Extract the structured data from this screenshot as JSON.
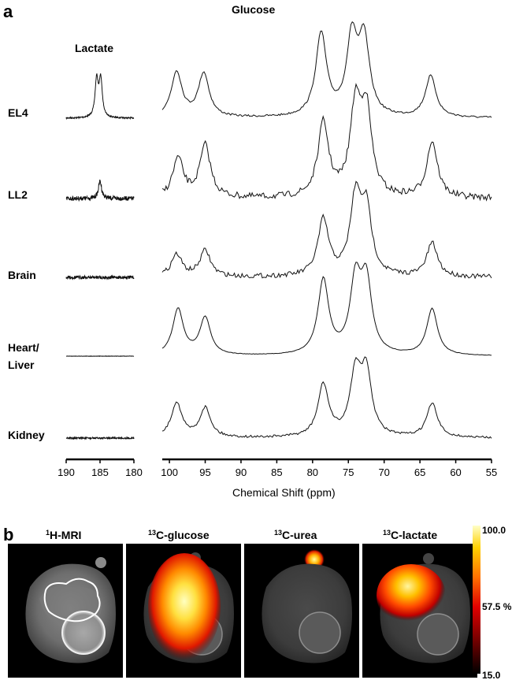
{
  "panel_a": {
    "letter": "a",
    "lactate_title": "Lactate",
    "glucose_title": "Glucose",
    "rows": [
      {
        "label_lines": [
          "EL4"
        ]
      },
      {
        "label_lines": [
          "LL2"
        ]
      },
      {
        "label_lines": [
          "Brain"
        ]
      },
      {
        "label_lines": [
          "Heart/",
          "Liver"
        ]
      },
      {
        "label_lines": [
          "Kidney"
        ]
      }
    ],
    "axis_title": "Chemical Shift (ppm)",
    "left_axis_ticks": [
      "190",
      "185",
      "180"
    ],
    "right_axis_ticks": [
      "100",
      "95",
      "90",
      "85",
      "80",
      "75",
      "70",
      "65",
      "60",
      "55"
    ]
  },
  "panel_b": {
    "letter": "b",
    "titles": [
      {
        "sup": "1",
        "text": "H-MRI"
      },
      {
        "sup": "13",
        "text": "C-glucose"
      },
      {
        "sup": "13",
        "text": "C-urea"
      },
      {
        "sup": "13",
        "text": "C-lactate"
      }
    ],
    "colorbar": {
      "max": "100.0",
      "mid": "57.5 %",
      "min": "15.0"
    }
  },
  "chart_data": [
    {
      "type": "line",
      "title": "",
      "xlabel": "Chemical Shift (ppm)",
      "ylabel": "",
      "x_axis_reversed": true,
      "xlim_segments": [
        [
          190,
          180
        ],
        [
          101,
          55
        ]
      ],
      "grid": false,
      "series": [
        {
          "name": "EL4",
          "peaks": [
            {
              "ppm": 185.5,
              "height": 0.45
            },
            {
              "ppm": 184.9,
              "height": 0.45
            },
            {
              "ppm": 99.0,
              "height": 0.55
            },
            {
              "ppm": 95.2,
              "height": 0.53
            },
            {
              "ppm": 78.8,
              "height": 1.0
            },
            {
              "ppm": 74.5,
              "height": 0.92
            },
            {
              "ppm": 72.8,
              "height": 0.9
            },
            {
              "ppm": 63.5,
              "height": 0.5
            }
          ]
        },
        {
          "name": "LL2",
          "peaks": [
            {
              "ppm": 185.0,
              "height": 0.2
            },
            {
              "ppm": 98.8,
              "height": 0.45
            },
            {
              "ppm": 95.0,
              "height": 0.6
            },
            {
              "ppm": 78.5,
              "height": 0.85
            },
            {
              "ppm": 74.0,
              "height": 1.0
            },
            {
              "ppm": 72.5,
              "height": 0.95
            },
            {
              "ppm": 63.3,
              "height": 0.65
            }
          ]
        },
        {
          "name": "Brain",
          "peaks": [
            {
              "ppm": 99.0,
              "height": 0.3
            },
            {
              "ppm": 95.0,
              "height": 0.35
            },
            {
              "ppm": 78.5,
              "height": 0.75
            },
            {
              "ppm": 74.0,
              "height": 1.0
            },
            {
              "ppm": 72.5,
              "height": 0.85
            },
            {
              "ppm": 63.3,
              "height": 0.45
            }
          ]
        },
        {
          "name": "Heart/ Liver",
          "peaks": [
            {
              "ppm": 98.8,
              "height": 0.62
            },
            {
              "ppm": 95.0,
              "height": 0.5
            },
            {
              "ppm": 78.5,
              "height": 1.0
            },
            {
              "ppm": 74.0,
              "height": 0.95
            },
            {
              "ppm": 72.5,
              "height": 0.95
            },
            {
              "ppm": 63.3,
              "height": 0.62
            }
          ]
        },
        {
          "name": "Kidney",
          "peaks": [
            {
              "ppm": 99.0,
              "height": 0.57
            },
            {
              "ppm": 95.0,
              "height": 0.48
            },
            {
              "ppm": 78.5,
              "height": 0.85
            },
            {
              "ppm": 74.0,
              "height": 1.0
            },
            {
              "ppm": 72.5,
              "height": 1.0
            },
            {
              "ppm": 63.3,
              "height": 0.55
            }
          ]
        }
      ]
    }
  ]
}
